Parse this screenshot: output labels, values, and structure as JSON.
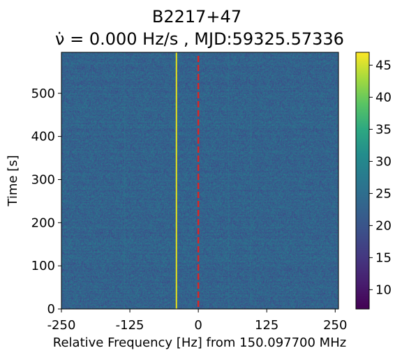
{
  "chart_data": {
    "type": "heatmap",
    "title_line1": "B2217+47",
    "title_line2_rate_symbol": "ν̇",
    "title_line2_text": " = 0.000 Hz/s , MJD:59325.57336",
    "xlabel": "Relative Frequency [Hz] from 150.097700 MHz",
    "ylabel": "Time [s]",
    "xlim": [
      -250,
      256
    ],
    "ylim": [
      0,
      595
    ],
    "x_ticks": [
      {
        "value": -250,
        "label": "-250"
      },
      {
        "value": -125,
        "label": "-125"
      },
      {
        "value": 0,
        "label": "0"
      },
      {
        "value": 125,
        "label": "125"
      },
      {
        "value": 250,
        "label": "250"
      }
    ],
    "y_ticks": [
      {
        "value": 0,
        "label": "0"
      },
      {
        "value": 100,
        "label": "100"
      },
      {
        "value": 200,
        "label": "200"
      },
      {
        "value": 300,
        "label": "300"
      },
      {
        "value": 400,
        "label": "400"
      },
      {
        "value": 500,
        "label": "500"
      }
    ],
    "colorbar": {
      "colormap": "viridis",
      "range": [
        7,
        47
      ],
      "ticks": [
        {
          "value": 10,
          "label": "10"
        },
        {
          "value": 15,
          "label": "15"
        },
        {
          "value": 20,
          "label": "20"
        },
        {
          "value": 25,
          "label": "25"
        },
        {
          "value": 30,
          "label": "30"
        },
        {
          "value": 35,
          "label": "35"
        },
        {
          "value": 40,
          "label": "40"
        },
        {
          "value": 45,
          "label": "45"
        }
      ]
    },
    "background_level": 23,
    "noise_amplitude": 5,
    "signal": {
      "frequency": -40,
      "intensity": 46,
      "color": "#e6e31a"
    },
    "faint_channels": [
      {
        "frequency": -135,
        "intensity": 26
      },
      {
        "frequency": 55,
        "intensity": 25.5
      },
      {
        "frequency": 95,
        "intensity": 25
      }
    ],
    "reference_line": {
      "frequency": 0,
      "color": "#d62728",
      "style": "dashed"
    }
  }
}
